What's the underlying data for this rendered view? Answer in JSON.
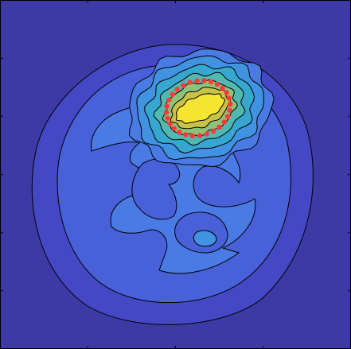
{
  "chart_data": {
    "type": "heatmap",
    "subtype": "filled-contour",
    "title": "",
    "xlabel": "",
    "ylabel": "",
    "colormap": "parula",
    "grid": false,
    "legend": "none",
    "colors": {
      "background": "#3d3aa6",
      "level_1": "#4548c4",
      "level_2": "#4860d8",
      "level_3": "#4a7be4",
      "level_4": "#4192e0",
      "level_5": "#37a7cf",
      "level_6": "#52b9b0",
      "level_7": "#8cc27a",
      "level_8": "#c8c24a",
      "level_9": "#f6e432",
      "contour_line": "#000000",
      "marker": "#ff3c3c"
    },
    "x_ticks": [
      0,
      0.25,
      0.5,
      0.75,
      1
    ],
    "y_ticks": [
      0,
      0.167,
      0.333,
      0.5,
      0.667,
      0.833,
      1
    ],
    "contour_levels": 9,
    "hotspot": {
      "level": 9,
      "center": [
        0.57,
        0.31
      ],
      "description": "peak region"
    },
    "marker_ring": {
      "shape": "ellipse",
      "center": [
        0.565,
        0.31
      ],
      "semi_axes": [
        0.215,
        0.185
      ],
      "count": 28,
      "style": "dashed red dots"
    }
  }
}
